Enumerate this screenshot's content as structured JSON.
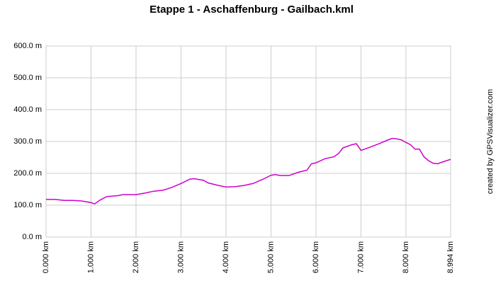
{
  "chart_data": {
    "type": "line",
    "title": "Etappe 1 - Aschaffenburg - Gailbach.kml",
    "annotation": "created by GPSVisualizer.com",
    "x": [
      0,
      0.2,
      0.4,
      0.6,
      0.8,
      1.0,
      1.08,
      1.2,
      1.35,
      1.6,
      1.7,
      2.0,
      2.2,
      2.4,
      2.6,
      2.8,
      3.0,
      3.2,
      3.3,
      3.5,
      3.6,
      3.8,
      4.0,
      4.2,
      4.4,
      4.6,
      4.8,
      5.0,
      5.1,
      5.2,
      5.4,
      5.6,
      5.8,
      5.9,
      6.0,
      6.2,
      6.4,
      6.5,
      6.6,
      6.8,
      6.9,
      7.0,
      7.2,
      7.4,
      7.6,
      7.7,
      7.8,
      7.9,
      8.0,
      8.1,
      8.2,
      8.3,
      8.4,
      8.5,
      8.6,
      8.7,
      8.8,
      8.994
    ],
    "values": [
      118,
      118,
      115,
      115,
      113,
      108,
      104,
      116,
      127,
      130,
      133,
      133,
      138,
      144,
      147,
      156,
      168,
      182,
      183,
      178,
      170,
      163,
      157,
      158,
      162,
      168,
      180,
      194,
      196,
      193,
      193,
      203,
      210,
      230,
      233,
      246,
      252,
      262,
      280,
      290,
      293,
      272,
      282,
      293,
      305,
      310,
      308,
      305,
      297,
      290,
      276,
      276,
      252,
      240,
      232,
      230,
      235,
      244
    ],
    "color": "#cc00cc",
    "xlim": [
      0,
      8.994
    ],
    "xticks": [
      {
        "value": 0,
        "label": "0.000 km"
      },
      {
        "value": 1,
        "label": "1.000 km"
      },
      {
        "value": 2,
        "label": "2.000 km"
      },
      {
        "value": 3,
        "label": "3.000 km"
      },
      {
        "value": 4,
        "label": "4.000 km"
      },
      {
        "value": 5,
        "label": "5.000 km"
      },
      {
        "value": 6,
        "label": "6.000 km"
      },
      {
        "value": 7,
        "label": "7.000 km"
      },
      {
        "value": 8,
        "label": "8.000 km"
      },
      {
        "value": 8.994,
        "label": "8.994 km"
      }
    ],
    "ylim": [
      0,
      600
    ],
    "yticks": [
      {
        "value": 0,
        "label": "0.0 m"
      },
      {
        "value": 100,
        "label": "100.0 m"
      },
      {
        "value": 200,
        "label": "200.0 m"
      },
      {
        "value": 300,
        "label": "300.0 m"
      },
      {
        "value": 400,
        "label": "400.0 m"
      },
      {
        "value": 500,
        "label": "500.0 m"
      },
      {
        "value": 600,
        "label": "600.0 m"
      }
    ],
    "grid": true
  }
}
